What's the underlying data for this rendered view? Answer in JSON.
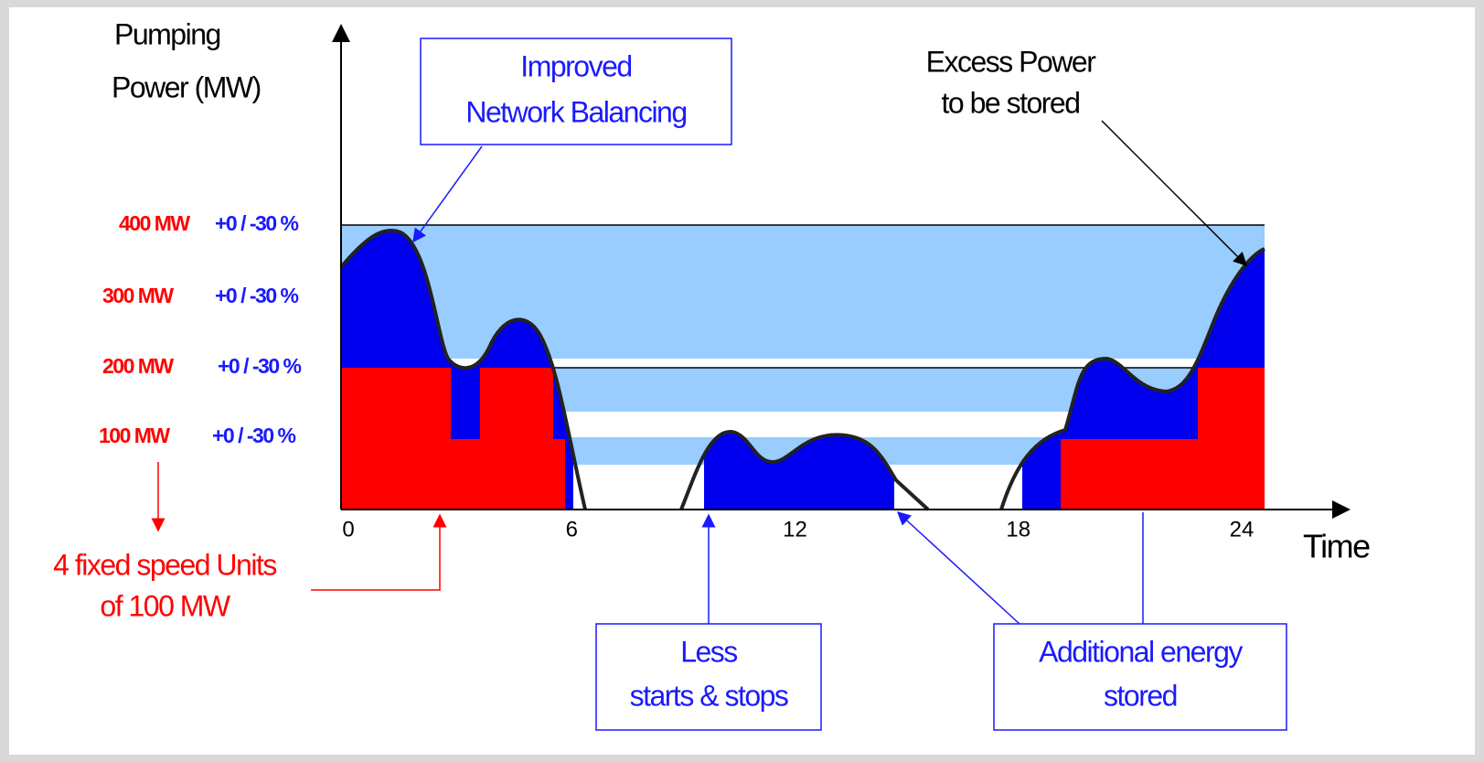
{
  "y_axis_label": [
    "Pumping",
    "Power (MW)"
  ],
  "x_axis_label": "Time",
  "x_ticks": [
    0,
    6,
    12,
    18,
    24
  ],
  "levels": [
    {
      "power": "400 MW",
      "tolerance": "+0 /  -30 %"
    },
    {
      "power": "300 MW",
      "tolerance": "+0 /  -30 %"
    },
    {
      "power": "200 MW",
      "tolerance": "+0 /  -30 %"
    },
    {
      "power": "100 MW",
      "tolerance": "+0 /  -30 %"
    }
  ],
  "annotations": {
    "network_balancing": [
      "Improved",
      "Network Balancing"
    ],
    "excess_power": [
      "Excess Power",
      "to be stored"
    ],
    "fixed_units": [
      "4 fixed speed Units",
      "of 100 MW"
    ],
    "starts_stops": [
      "Less",
      "starts & stops"
    ],
    "additional_energy": [
      "Additional energy",
      "stored"
    ]
  }
}
